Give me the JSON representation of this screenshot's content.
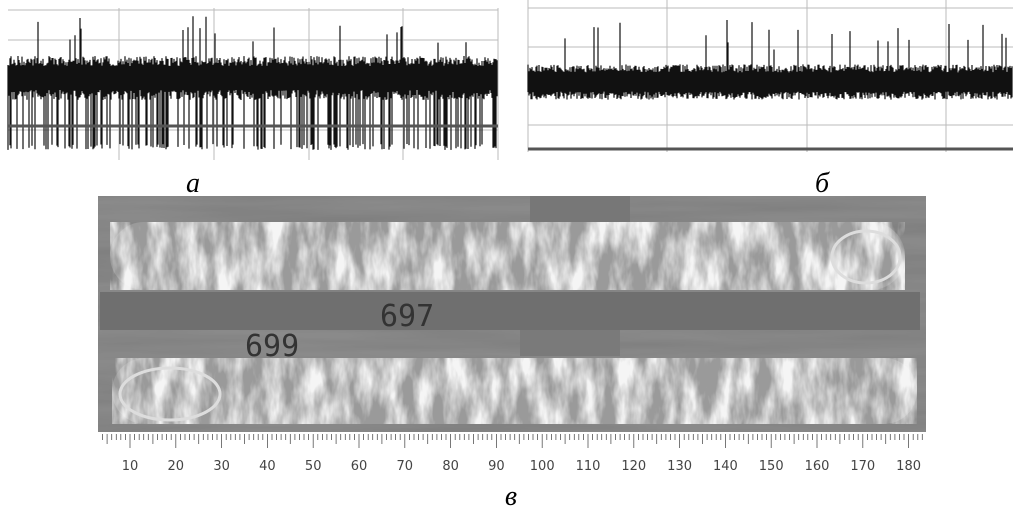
{
  "panels": {
    "a": {
      "label": "а"
    },
    "b": {
      "label": "б"
    },
    "c": {
      "label": "в",
      "stamps": [
        "697",
        "699"
      ]
    }
  },
  "ruler": {
    "labels": [
      10,
      20,
      30,
      40,
      50,
      60,
      70,
      80,
      90,
      100,
      110,
      120,
      130,
      140,
      150,
      160,
      170,
      180
    ]
  }
}
